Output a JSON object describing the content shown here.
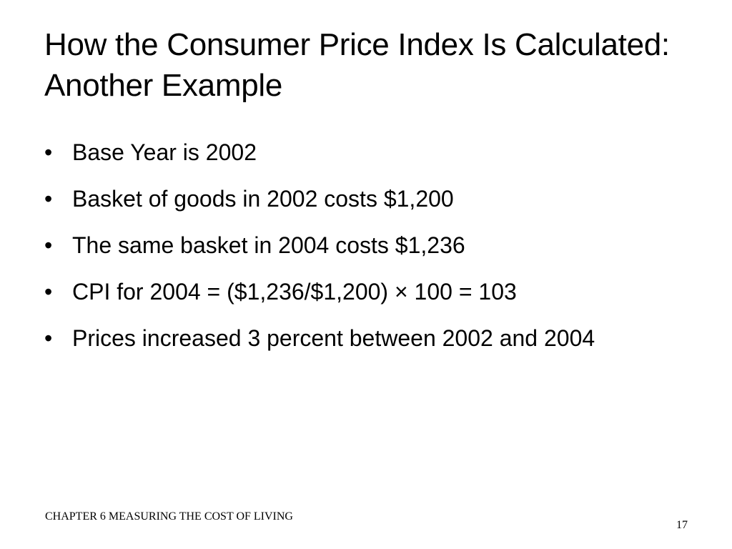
{
  "slide": {
    "title": "How the Consumer Price Index Is Calculated: Another Example",
    "bullet_symbol": "•",
    "bullets": [
      "Base Year is 2002",
      "Basket of goods in 2002 costs $1,200",
      "The same basket in 2004 costs $1,236",
      "CPI for 2004 = ($1,236/$1,200) × 100 = 103",
      "Prices increased 3 percent between 2002 and 2004"
    ],
    "footer": {
      "chapter": "CHAPTER 6 MEASURING THE COST OF LIVING",
      "page_number": "17"
    }
  }
}
